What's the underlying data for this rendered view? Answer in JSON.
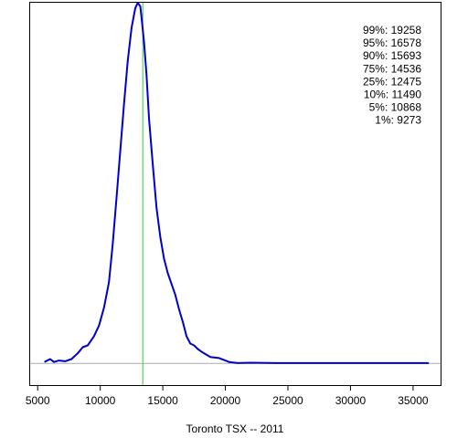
{
  "chart_data": {
    "type": "line",
    "title": "",
    "xlabel": "Toronto TSX -- 2011",
    "ylabel": "",
    "xlim": [
      4400,
      37200
    ],
    "ylim": [
      -0.06,
      1.0
    ],
    "xticks": [
      5000,
      10000,
      15000,
      20000,
      25000,
      30000,
      35000
    ],
    "xtick_labels": [
      "5000",
      "10000",
      "15000",
      "20000",
      "25000",
      "30000",
      "35000"
    ],
    "series": [
      {
        "name": "",
        "color": "#0000cc",
        "x": [
          5600,
          6000,
          6300,
          6700,
          7200,
          7700,
          8200,
          8600,
          9000,
          9500,
          9900,
          10300,
          10700,
          11000,
          11300,
          11600,
          11900,
          12200,
          12500,
          12800,
          13000,
          13200,
          13300,
          13500,
          13700,
          13900,
          14200,
          14500,
          14800,
          15100,
          15400,
          15700,
          16000,
          16300,
          16600,
          16900,
          17200,
          17500,
          17800,
          18200,
          18800,
          19500,
          20300,
          21000,
          22000,
          24000,
          27000,
          30000,
          33000,
          36200
        ],
        "y": [
          0.005,
          0.012,
          0.004,
          0.008,
          0.006,
          0.012,
          0.028,
          0.045,
          0.05,
          0.075,
          0.105,
          0.155,
          0.225,
          0.33,
          0.46,
          0.59,
          0.72,
          0.84,
          0.93,
          0.985,
          1.0,
          0.99,
          0.96,
          0.89,
          0.8,
          0.68,
          0.55,
          0.43,
          0.35,
          0.29,
          0.25,
          0.22,
          0.19,
          0.15,
          0.115,
          0.075,
          0.055,
          0.05,
          0.04,
          0.03,
          0.018,
          0.015,
          0.004,
          0.001,
          0.002,
          0.001,
          0.001,
          0.001,
          0.001,
          0.001
        ]
      }
    ],
    "vline": {
      "x": 13400,
      "color": "#33cc33"
    },
    "baseline": {
      "y": 0,
      "color": "#aaaaaa"
    },
    "quantiles": [
      {
        "label": "99%: 19258"
      },
      {
        "label": "95%: 16578"
      },
      {
        "label": "90%: 15693"
      },
      {
        "label": "75%: 14536"
      },
      {
        "label": "25%: 12475"
      },
      {
        "label": "10%: 11490"
      },
      {
        "label": "5%: 10868"
      },
      {
        "label": "1%:  9273"
      }
    ]
  }
}
